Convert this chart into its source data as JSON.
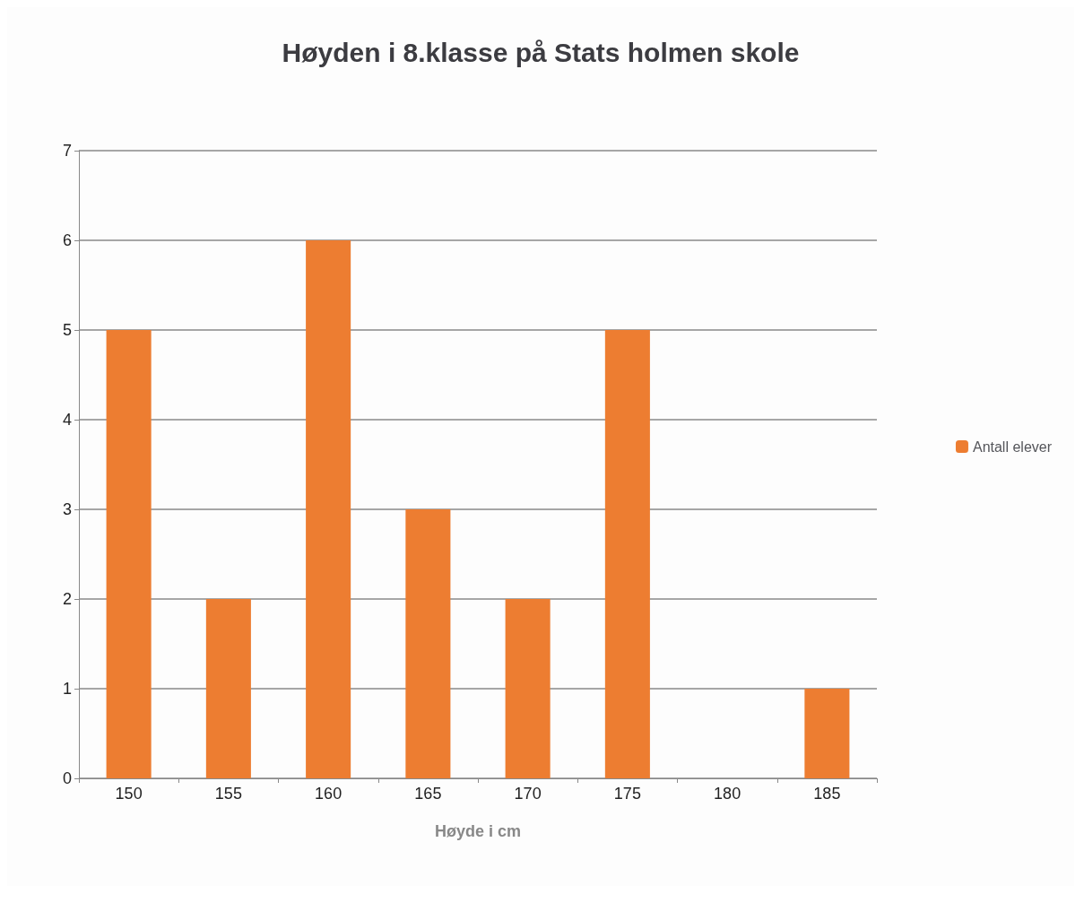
{
  "chart_data": {
    "type": "bar",
    "title": "Høyden i 8.klasse på Stats holmen skole",
    "xlabel": "Høyde i cm",
    "categories": [
      "150",
      "155",
      "160",
      "165",
      "170",
      "175",
      "180",
      "185"
    ],
    "series": [
      {
        "name": "Antall elever",
        "color": "#ed7d31",
        "values": [
          5,
          2,
          6,
          3,
          2,
          5,
          0,
          1
        ]
      }
    ],
    "ylim": [
      0,
      7
    ],
    "yticks": [
      0,
      1,
      2,
      3,
      4,
      5,
      6,
      7
    ],
    "grid": "y",
    "legend": "right"
  }
}
